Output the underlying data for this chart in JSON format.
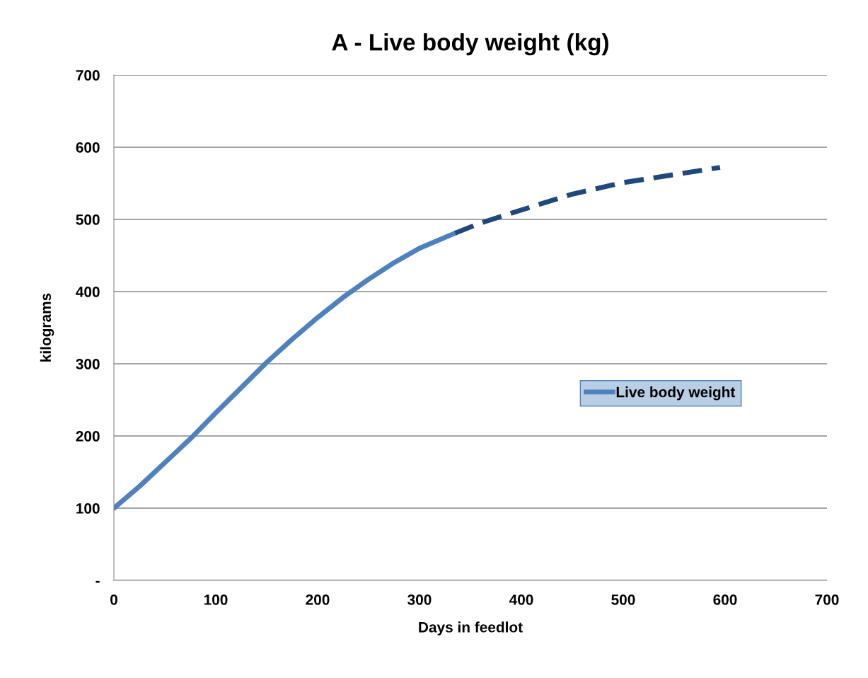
{
  "chart_data": {
    "type": "line",
    "title": "A - Live body weight (kg)",
    "xlabel": "Days in feedlot",
    "ylabel": "kilograms",
    "series": [
      {
        "name": "Live body weight",
        "color": "#4f81bd",
        "line_style": "solid",
        "x": [
          0,
          25,
          50,
          75,
          100,
          125,
          150,
          175,
          200,
          225,
          250,
          275,
          300,
          335
        ],
        "values": [
          100,
          130,
          163,
          196,
          232,
          267,
          302,
          334,
          364,
          392,
          417,
          440,
          460,
          481
        ]
      },
      {
        "color": "#1f497d",
        "line_style": "dashed",
        "x": [
          335,
          360,
          400,
          450,
          500,
          550,
          595
        ],
        "values": [
          481,
          495,
          513,
          535,
          551,
          562,
          572
        ]
      }
    ],
    "xlim": [
      0,
      700
    ],
    "xticks": [
      0,
      100,
      200,
      300,
      400,
      500,
      600,
      700
    ],
    "ylim": [
      0,
      700
    ],
    "yticks": [
      {
        "value": 0,
        "label": "-"
      },
      100,
      200,
      300,
      400,
      500,
      600,
      700
    ],
    "grid": "y",
    "legend": "right",
    "marker": "none"
  }
}
